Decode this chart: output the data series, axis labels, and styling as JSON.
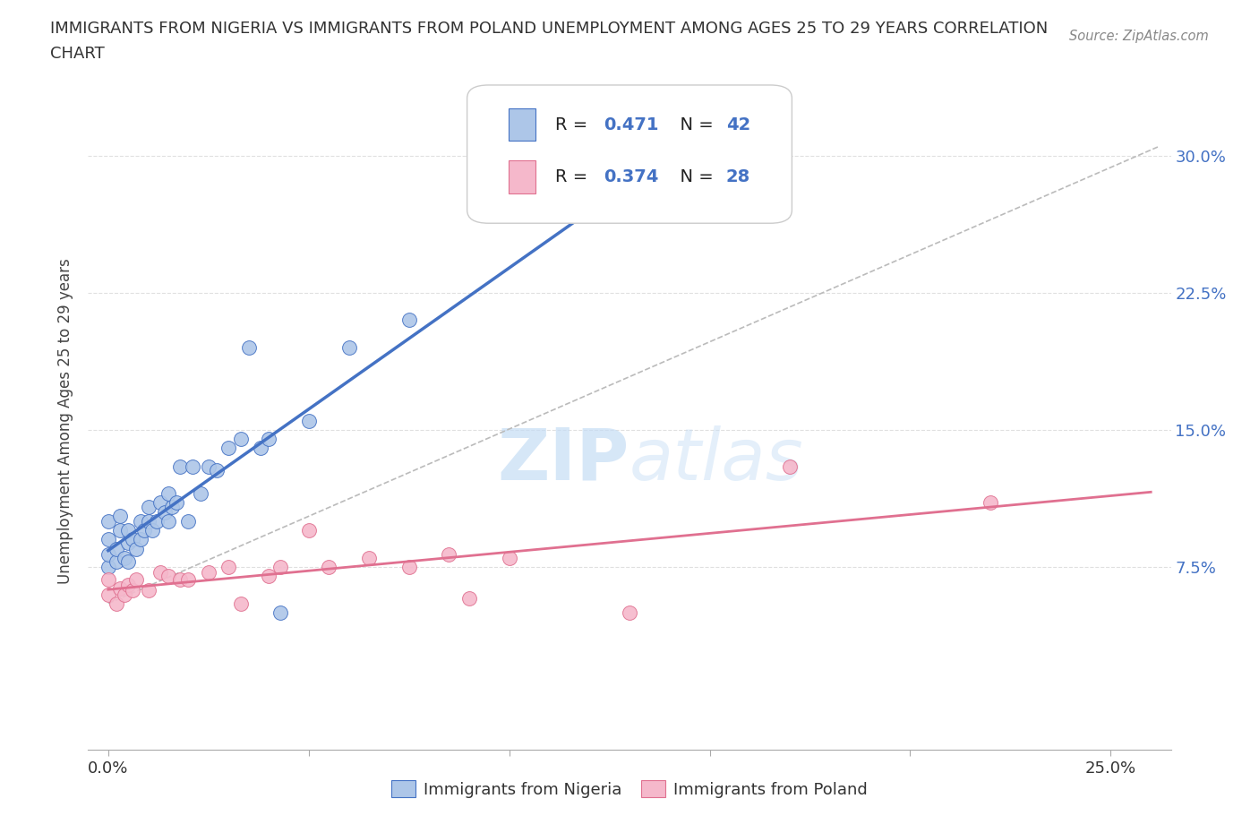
{
  "title_line1": "IMMIGRANTS FROM NIGERIA VS IMMIGRANTS FROM POLAND UNEMPLOYMENT AMONG AGES 25 TO 29 YEARS CORRELATION",
  "title_line2": "CHART",
  "source": "Source: ZipAtlas.com",
  "ylabel": "Unemployment Among Ages 25 to 29 years",
  "ylabel_right_ticks": [
    0.075,
    0.15,
    0.225,
    0.3
  ],
  "ylabel_right_labels": [
    "7.5%",
    "15.0%",
    "22.5%",
    "30.0%"
  ],
  "xlim": [
    -0.005,
    0.265
  ],
  "ylim": [
    -0.025,
    0.335
  ],
  "nigeria_R": 0.471,
  "nigeria_N": 42,
  "poland_R": 0.374,
  "poland_N": 28,
  "nigeria_color": "#adc6e8",
  "nigeria_edge_color": "#4472c4",
  "nigeria_line_color": "#4472c4",
  "poland_color": "#f5b8cb",
  "poland_edge_color": "#e07090",
  "poland_line_color": "#e07090",
  "diag_color": "#bbbbbb",
  "watermark_color": "#c5ddf5",
  "nigeria_x": [
    0.0,
    0.0,
    0.0,
    0.0,
    0.002,
    0.002,
    0.003,
    0.003,
    0.004,
    0.005,
    0.005,
    0.005,
    0.006,
    0.007,
    0.008,
    0.008,
    0.009,
    0.01,
    0.01,
    0.011,
    0.012,
    0.013,
    0.014,
    0.015,
    0.015,
    0.016,
    0.017,
    0.018,
    0.02,
    0.021,
    0.023,
    0.025,
    0.027,
    0.03,
    0.033,
    0.035,
    0.038,
    0.04,
    0.043,
    0.05,
    0.06,
    0.075
  ],
  "nigeria_y": [
    0.075,
    0.082,
    0.09,
    0.1,
    0.078,
    0.085,
    0.095,
    0.103,
    0.08,
    0.078,
    0.088,
    0.095,
    0.09,
    0.085,
    0.09,
    0.1,
    0.095,
    0.1,
    0.108,
    0.095,
    0.1,
    0.11,
    0.105,
    0.1,
    0.115,
    0.108,
    0.11,
    0.13,
    0.1,
    0.13,
    0.115,
    0.13,
    0.128,
    0.14,
    0.145,
    0.195,
    0.14,
    0.145,
    0.05,
    0.155,
    0.195,
    0.21
  ],
  "poland_x": [
    0.0,
    0.0,
    0.002,
    0.003,
    0.004,
    0.005,
    0.006,
    0.007,
    0.01,
    0.013,
    0.015,
    0.018,
    0.02,
    0.025,
    0.03,
    0.033,
    0.04,
    0.043,
    0.05,
    0.055,
    0.065,
    0.075,
    0.085,
    0.09,
    0.1,
    0.13,
    0.17,
    0.22
  ],
  "poland_y": [
    0.06,
    0.068,
    0.055,
    0.063,
    0.06,
    0.065,
    0.062,
    0.068,
    0.062,
    0.072,
    0.07,
    0.068,
    0.068,
    0.072,
    0.075,
    0.055,
    0.07,
    0.075,
    0.095,
    0.075,
    0.08,
    0.075,
    0.082,
    0.058,
    0.08,
    0.05,
    0.13,
    0.11
  ],
  "background_color": "#ffffff",
  "grid_color": "#dddddd"
}
